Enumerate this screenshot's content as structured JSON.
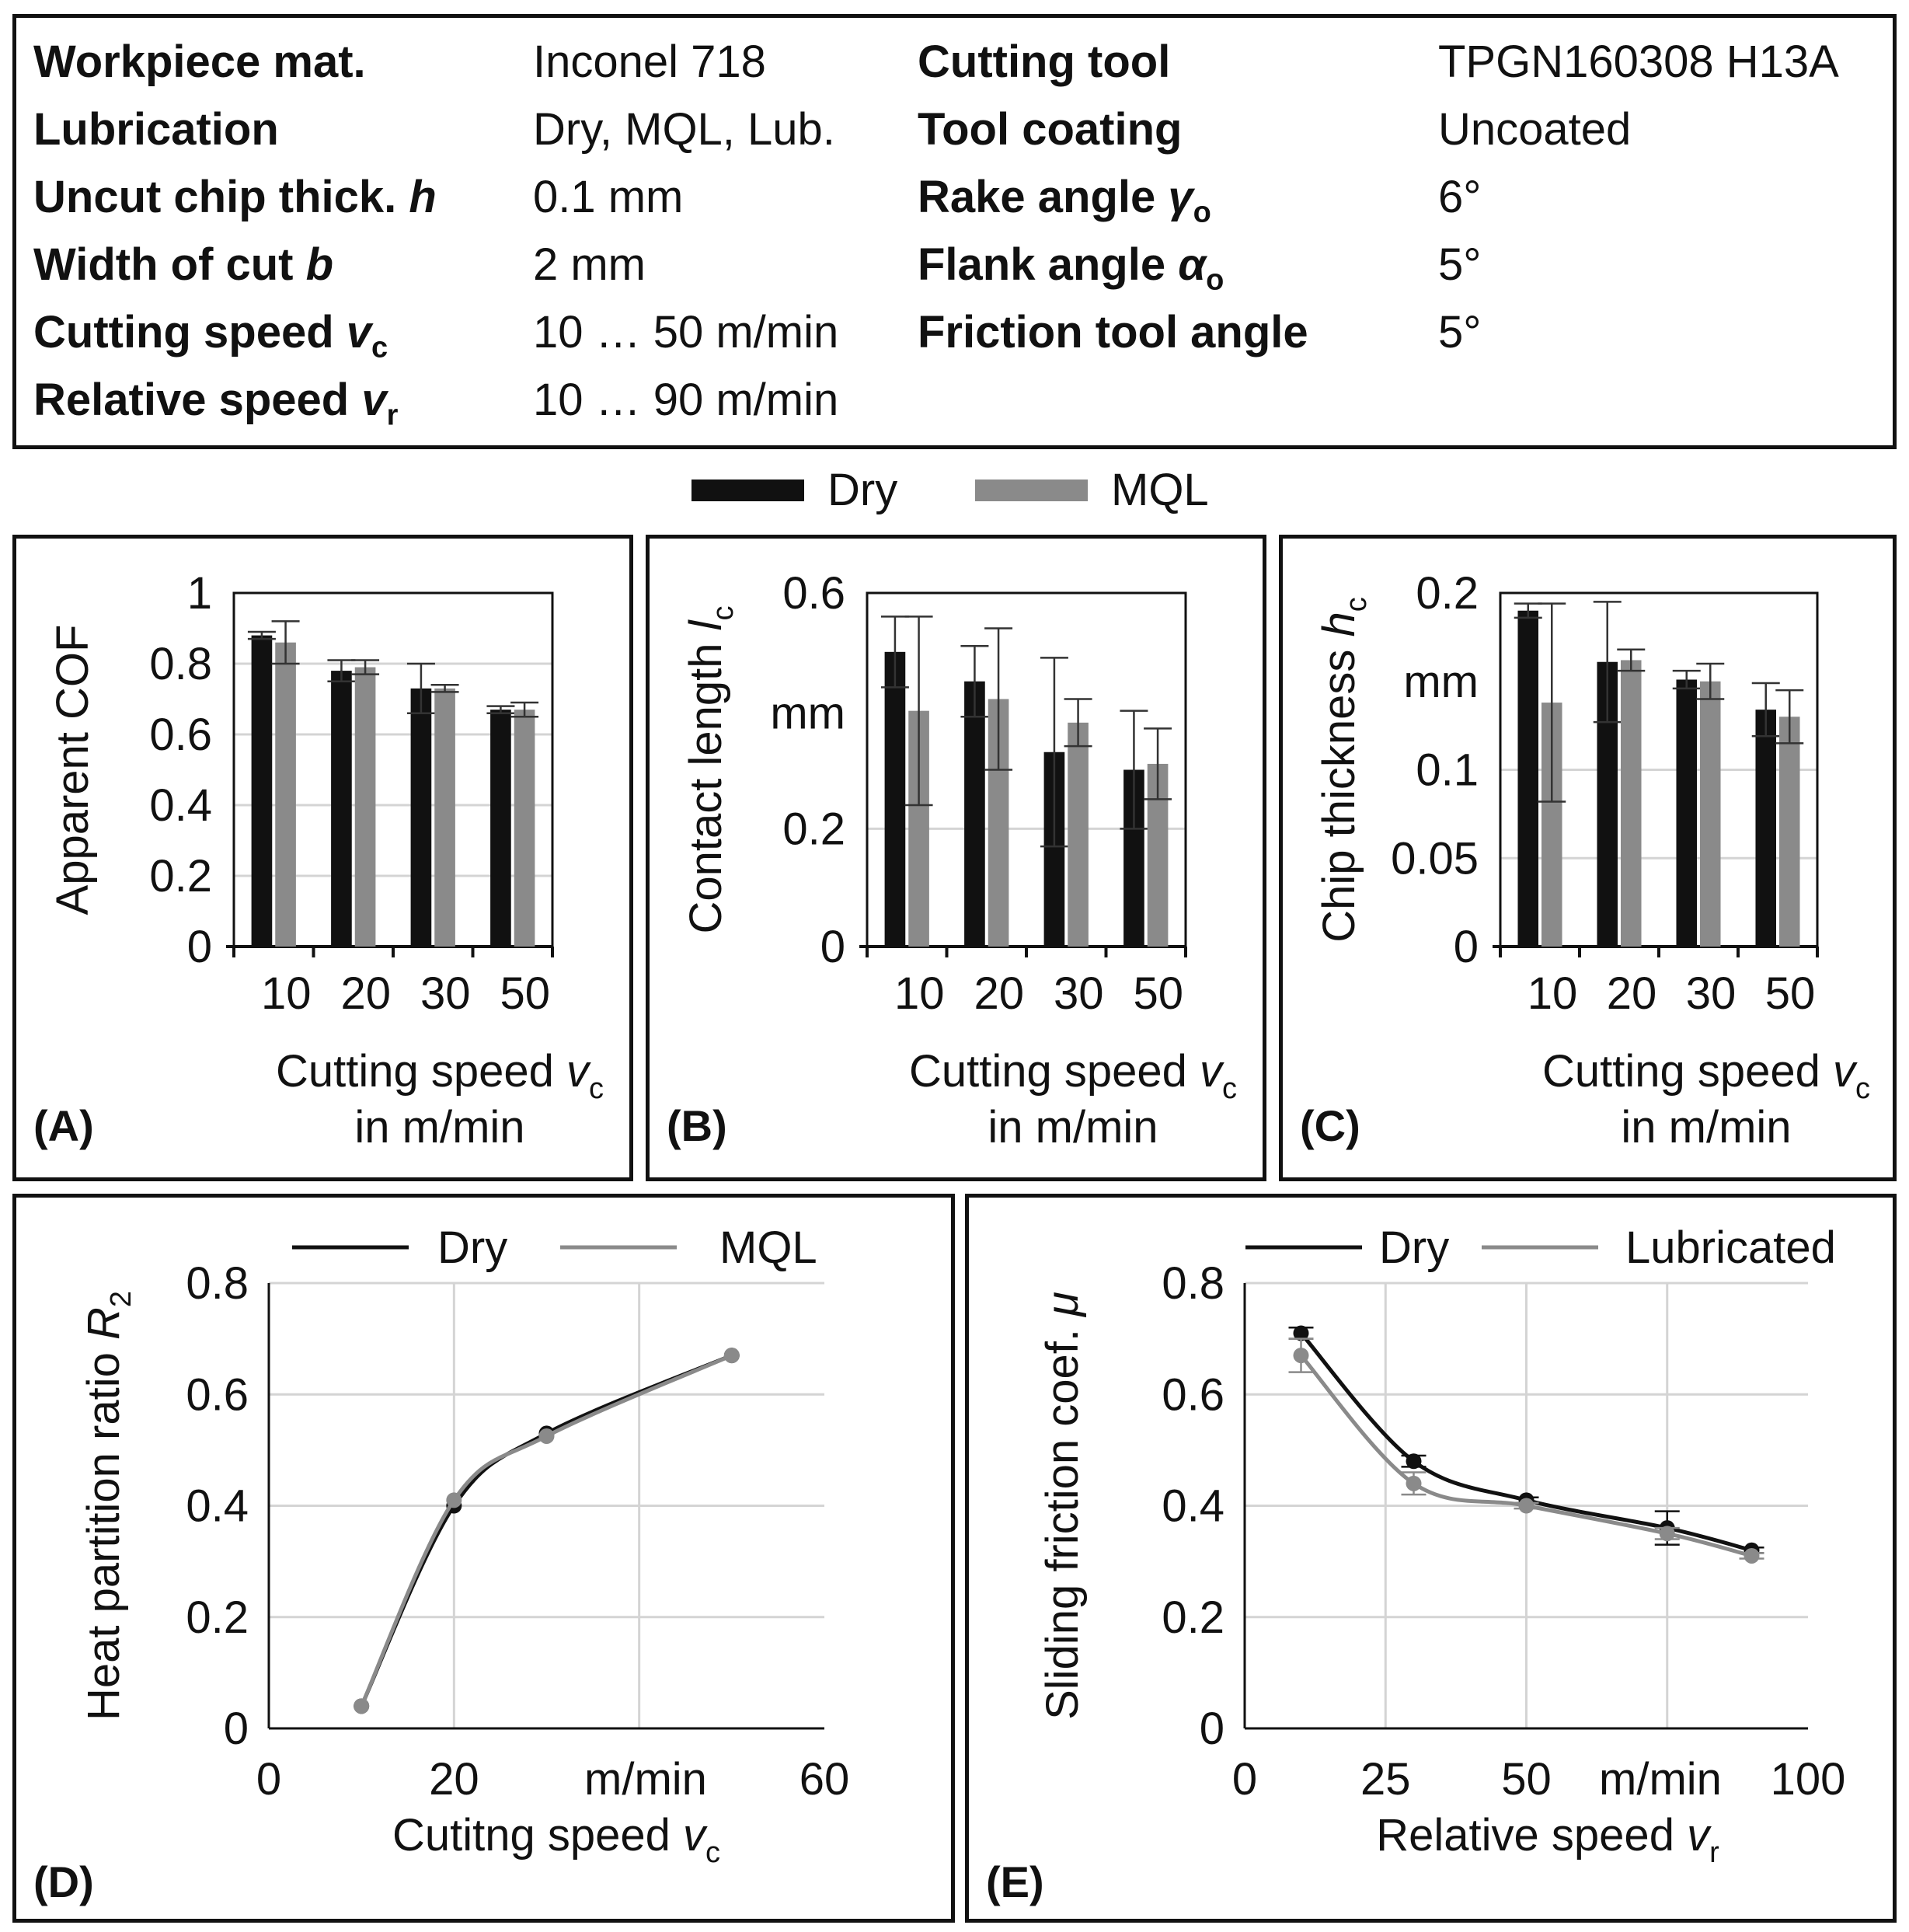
{
  "params": {
    "left": [
      {
        "label": "Workpiece mat.",
        "value": "Inconel 718"
      },
      {
        "label": "Lubrication",
        "value": "Dry, MQL, Lub."
      },
      {
        "label": "Uncut chip thick. ",
        "sym": "h",
        "sub": "",
        "value": "0.1 mm"
      },
      {
        "label": "Width of cut ",
        "sym": "b",
        "sub": "",
        "value": "2 mm"
      },
      {
        "label": "Cutting speed ",
        "sym": "v",
        "sub": "c",
        "value": "10 … 50 m/min"
      },
      {
        "label": "Relative speed ",
        "sym": "v",
        "sub": "r",
        "value": "10 … 90 m/min"
      }
    ],
    "right": [
      {
        "label": "Cutting tool",
        "value": "TPGN160308 H13A"
      },
      {
        "label": "Tool coating",
        "value": "Uncoated"
      },
      {
        "label": "Rake angle ",
        "sym": "γ",
        "sub": "o",
        "value": "6°"
      },
      {
        "label": "Flank angle ",
        "sym": "α",
        "sub": "o",
        "value": "5°"
      },
      {
        "label": "Friction tool angle",
        "value": "5°"
      }
    ]
  },
  "legend_top": {
    "dry": "Dry",
    "mql": "MQL"
  },
  "colors": {
    "dry": "#111111",
    "mql": "#8a8a8a",
    "grid": "#d4d4d4"
  },
  "chart_data": [
    {
      "id": "A",
      "type": "bar",
      "panel_label": "(A)",
      "ylabel": "Apparent COF",
      "xlabel_line1": "Cutting speed ",
      "xlabel_sym": "v",
      "xlabel_sub": "c",
      "xlabel_line2": "in m/min",
      "categories": [
        "10",
        "20",
        "30",
        "50"
      ],
      "ylim": [
        0,
        1
      ],
      "yticks": [
        0,
        0.2,
        0.4,
        0.6,
        0.8,
        1
      ],
      "ytick_labels": [
        "0",
        "0.2",
        "0.4",
        "0.6",
        "0.8",
        "1"
      ],
      "series": [
        {
          "name": "Dry",
          "values": [
            0.88,
            0.78,
            0.73,
            0.67
          ],
          "err": [
            0.01,
            0.03,
            0.07,
            0.01
          ]
        },
        {
          "name": "MQL",
          "values": [
            0.86,
            0.79,
            0.73,
            0.67
          ],
          "err": [
            0.06,
            0.02,
            0.01,
            0.02
          ]
        }
      ]
    },
    {
      "id": "B",
      "type": "bar",
      "panel_label": "(B)",
      "ylabel": "Contact length ",
      "ylabel_sym": "l",
      "ylabel_sub": "c",
      "yunit": "mm",
      "xlabel_line1": "Cutting speed ",
      "xlabel_sym": "v",
      "xlabel_sub": "c",
      "xlabel_line2": "in m/min",
      "categories": [
        "10",
        "20",
        "30",
        "50"
      ],
      "ylim": [
        0,
        0.6
      ],
      "yticks": [
        0,
        0.2,
        0.6
      ],
      "ytick_labels": [
        "0",
        "0.2",
        "0.6"
      ],
      "series": [
        {
          "name": "Dry",
          "values": [
            0.5,
            0.45,
            0.33,
            0.3
          ],
          "err": [
            0.06,
            0.06,
            0.16,
            0.1
          ]
        },
        {
          "name": "MQL",
          "values": [
            0.4,
            0.42,
            0.38,
            0.31
          ],
          "err": [
            0.16,
            0.12,
            0.04,
            0.06
          ]
        }
      ]
    },
    {
      "id": "C",
      "type": "bar",
      "panel_label": "(C)",
      "ylabel": "Chip thickness ",
      "ylabel_sym": "h",
      "ylabel_sub": "c",
      "yunit": "mm",
      "xlabel_line1": "Cutting speed ",
      "xlabel_sym": "v",
      "xlabel_sub": "c",
      "xlabel_line2": "in m/min",
      "categories": [
        "10",
        "20",
        "30",
        "50"
      ],
      "ylim": [
        0,
        0.2
      ],
      "yticks": [
        0,
        0.05,
        0.1,
        0.2
      ],
      "ytick_labels": [
        "0",
        "0.05",
        "0.1",
        "0.2"
      ],
      "series": [
        {
          "name": "Dry",
          "values": [
            0.19,
            0.161,
            0.151,
            0.134
          ],
          "err": [
            0.004,
            0.034,
            0.005,
            0.015
          ]
        },
        {
          "name": "MQL",
          "values": [
            0.138,
            0.162,
            0.15,
            0.13
          ],
          "err": [
            0.056,
            0.006,
            0.01,
            0.015
          ]
        }
      ]
    },
    {
      "id": "D",
      "type": "line",
      "panel_label": "(D)",
      "ylabel": "Heat partition ratio ",
      "ylabel_sym": "R",
      "ylabel_sub": "2",
      "xlabel_line1": "Cutitng speed ",
      "xlabel_sym": "v",
      "xlabel_sub": "c",
      "xunit": "m/min",
      "xlim": [
        0,
        60
      ],
      "ylim": [
        0,
        0.8
      ],
      "xticks": [
        0,
        20,
        60
      ],
      "xtick_labels": [
        "0",
        "20",
        "60"
      ],
      "yticks": [
        0,
        0.2,
        0.4,
        0.6,
        0.8
      ],
      "ytick_labels": [
        "0",
        "0.2",
        "0.4",
        "0.6",
        "0.8"
      ],
      "legend": [
        "Dry",
        "MQL"
      ],
      "series": [
        {
          "name": "Dry",
          "x": [
            10,
            20,
            30,
            50
          ],
          "y": [
            0.04,
            0.4,
            0.53,
            0.67
          ]
        },
        {
          "name": "MQL",
          "x": [
            10,
            20,
            30,
            50
          ],
          "y": [
            0.04,
            0.41,
            0.525,
            0.67
          ]
        }
      ]
    },
    {
      "id": "E",
      "type": "line",
      "panel_label": "(E)",
      "ylabel": "Sliding friction coef. ",
      "ylabel_sym": "μ",
      "ylabel_sub": "",
      "xlabel_line1": "Relative speed ",
      "xlabel_sym": "v",
      "xlabel_sub": "r",
      "xunit": "m/min",
      "xlim": [
        0,
        100
      ],
      "ylim": [
        0,
        0.8
      ],
      "xticks": [
        0,
        25,
        50,
        100
      ],
      "xtick_labels": [
        "0",
        "25",
        "50",
        "100"
      ],
      "yticks": [
        0,
        0.2,
        0.4,
        0.6,
        0.8
      ],
      "ytick_labels": [
        "0",
        "0.2",
        "0.4",
        "0.6",
        "0.8"
      ],
      "legend": [
        "Dry",
        "Lubricated"
      ],
      "series": [
        {
          "name": "Dry",
          "x": [
            10,
            30,
            50,
            75,
            90
          ],
          "y": [
            0.71,
            0.48,
            0.41,
            0.36,
            0.32
          ],
          "err": [
            0.01,
            0.01,
            0.005,
            0.03,
            0.005
          ]
        },
        {
          "name": "Lubricated",
          "x": [
            10,
            30,
            50,
            75,
            90
          ],
          "y": [
            0.67,
            0.44,
            0.4,
            0.35,
            0.31
          ],
          "err": [
            0.03,
            0.02,
            0.005,
            0.01,
            0.005
          ]
        }
      ]
    }
  ]
}
